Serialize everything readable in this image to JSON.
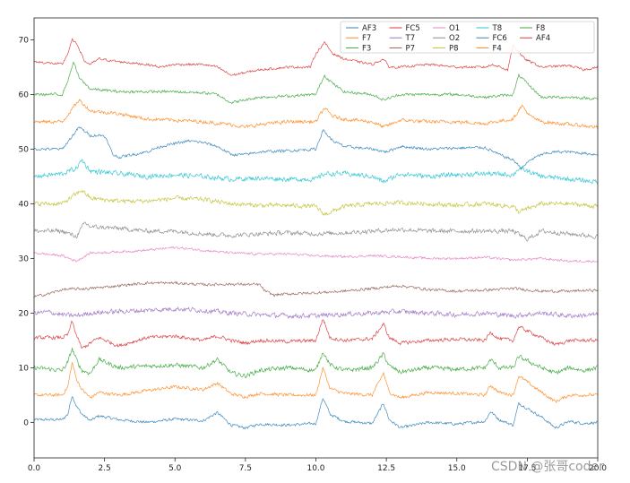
{
  "chart_data": {
    "type": "line",
    "title": "",
    "xlabel": "",
    "ylabel": "",
    "xlim": [
      0,
      20
    ],
    "ylim": [
      -6.5,
      74
    ],
    "xticks": [
      0,
      2.5,
      5,
      7.5,
      10,
      12.5,
      15,
      17.5,
      20
    ],
    "xtick_labels": [
      "0.0",
      "2.5",
      "5.0",
      "7.5",
      "10.0",
      "12.5",
      "15.0",
      "17.5",
      "20.0"
    ],
    "yticks": [
      0,
      10,
      20,
      30,
      40,
      50,
      60,
      70
    ],
    "ytick_labels": [
      "0",
      "10",
      "20",
      "30",
      "40",
      "50",
      "60",
      "70"
    ],
    "grid": false,
    "legend_placement": "top-right",
    "series": [
      {
        "name": "AF3",
        "color": "#1f77b4",
        "offset": 0,
        "noise": 0.35,
        "x": [
          0,
          1.0,
          1.2,
          1.35,
          1.5,
          1.7,
          2.0,
          2.3,
          3,
          4,
          5,
          6,
          6.5,
          7,
          7.5,
          8,
          9,
          10,
          10.25,
          10.5,
          11,
          12,
          12.4,
          12.6,
          13,
          14,
          15,
          16,
          16.2,
          16.5,
          17,
          17.2,
          18,
          18.5,
          19,
          19.5,
          20
        ],
        "y": [
          0.5,
          0.5,
          1.5,
          5,
          3,
          1.5,
          0.3,
          1.2,
          0.5,
          0,
          0.6,
          0.3,
          1.8,
          -0.5,
          -1,
          -0.3,
          -0.5,
          -0.2,
          4.5,
          1.5,
          0.2,
          -0.2,
          3.5,
          0.5,
          -1,
          0,
          -0.3,
          0.2,
          2,
          0.5,
          -0.5,
          3.5,
          1,
          -1,
          0.2,
          -0.2,
          0
        ]
      },
      {
        "name": "F7",
        "color": "#ff7f0e",
        "offset": 5,
        "noise": 0.4,
        "x": [
          0,
          1.0,
          1.2,
          1.35,
          1.5,
          1.7,
          2.0,
          2.3,
          3,
          4,
          5,
          6,
          6.5,
          7,
          7.5,
          8,
          9,
          10,
          10.25,
          10.5,
          11,
          12,
          12.4,
          12.6,
          13,
          14,
          15,
          16,
          16.2,
          16.5,
          17,
          17.2,
          18,
          18.5,
          19,
          19.5,
          20
        ],
        "y": [
          0,
          0,
          1.5,
          6,
          3,
          1,
          -0.5,
          0.5,
          0,
          0.8,
          1.5,
          1,
          2.2,
          0.2,
          -0.3,
          0.3,
          0,
          0,
          5,
          1.2,
          0.3,
          0,
          4,
          0.5,
          -0.5,
          0.5,
          0.3,
          0,
          1.8,
          0.5,
          0,
          3.5,
          0.5,
          -1.2,
          0,
          0,
          0
        ]
      },
      {
        "name": "F3",
        "color": "#2ca02c",
        "offset": 10,
        "noise": 0.55,
        "x": [
          0,
          1.0,
          1.2,
          1.35,
          1.5,
          1.7,
          2.0,
          2.3,
          3,
          4,
          5,
          6,
          6.5,
          7,
          7.5,
          8,
          9,
          10,
          10.25,
          10.5,
          11,
          12,
          12.4,
          12.6,
          13,
          14,
          15,
          16,
          16.2,
          16.5,
          17,
          17.2,
          18,
          18.5,
          19,
          19.5,
          20
        ],
        "y": [
          0,
          -0.5,
          1,
          3.5,
          1.5,
          -0.5,
          -1,
          1.5,
          0,
          0.3,
          0.5,
          0,
          1.5,
          -1,
          -1.5,
          -0.5,
          0,
          -0.5,
          3,
          0.5,
          -0.5,
          0,
          2.5,
          0.3,
          -0.8,
          0,
          -0.3,
          0,
          1.5,
          0,
          0,
          2,
          0,
          -1,
          0,
          -0.5,
          0
        ]
      },
      {
        "name": "FC5",
        "color": "#d62728",
        "offset": 15,
        "noise": 0.45,
        "x": [
          0,
          1.0,
          1.2,
          1.35,
          1.5,
          1.7,
          2.0,
          2.3,
          3,
          4,
          5,
          6,
          6.5,
          7,
          7.5,
          8,
          9,
          10,
          10.25,
          10.5,
          11,
          12,
          12.4,
          12.6,
          13,
          14,
          15,
          16,
          16.2,
          16.5,
          17,
          17.2,
          18,
          18.5,
          19,
          19.5,
          20
        ],
        "y": [
          0.5,
          0.5,
          1,
          3.5,
          1,
          -1.5,
          -0.5,
          0.5,
          -1,
          0.5,
          0.8,
          0,
          0.8,
          0,
          -0.5,
          0,
          -0.2,
          0,
          4,
          0.5,
          0,
          0.3,
          3,
          0.5,
          -0.5,
          0,
          0.2,
          0,
          1.5,
          0.3,
          0,
          2.5,
          0.5,
          -0.8,
          0,
          0,
          0
        ]
      },
      {
        "name": "T7",
        "color": "#9467bd",
        "offset": 20,
        "noise": 0.6,
        "x": [
          0,
          0.5,
          1,
          1.5,
          2,
          3,
          4,
          5,
          6,
          7,
          8,
          9,
          10,
          11,
          12,
          13,
          14,
          15,
          16,
          17,
          18,
          19,
          20
        ],
        "y": [
          0,
          0.2,
          -0.3,
          -0.5,
          0,
          0.3,
          0.5,
          0.8,
          0.5,
          0,
          -0.3,
          -0.5,
          -0.5,
          -0.2,
          0,
          0.3,
          0,
          -0.3,
          0,
          -0.5,
          0,
          -0.5,
          -0.3
        ]
      },
      {
        "name": "P7",
        "color": "#8c564b",
        "offset": 24,
        "noise": 0.35,
        "x": [
          0,
          0.5,
          1,
          2,
          3,
          4,
          5,
          6,
          7,
          8,
          8.2,
          8.5,
          9,
          10,
          11,
          12,
          13,
          14,
          15,
          16,
          17,
          18,
          19,
          20
        ],
        "y": [
          -1,
          -0.5,
          0.3,
          0.5,
          1,
          1.5,
          1.5,
          1.2,
          1.3,
          1.2,
          0,
          -0.7,
          -0.5,
          -0.3,
          0,
          0.5,
          1,
          0.3,
          0,
          0.2,
          0.5,
          0,
          0,
          0.2
        ]
      },
      {
        "name": "O1",
        "color": "#e377c2",
        "offset": 30,
        "noise": 0.3,
        "x": [
          0,
          1,
          1.5,
          2,
          3,
          4,
          5,
          6,
          7,
          8,
          9,
          10,
          11,
          12,
          13,
          14,
          15,
          16,
          17,
          18,
          19,
          20
        ],
        "y": [
          1,
          0.5,
          -0.5,
          1,
          1.2,
          1.5,
          2,
          1.5,
          1,
          0.8,
          0.8,
          0.5,
          0.3,
          0.5,
          0.3,
          0,
          0,
          0.2,
          -0.3,
          0,
          -0.5,
          -0.5
        ]
      },
      {
        "name": "O2",
        "color": "#7f7f7f",
        "offset": 35,
        "noise": 0.55,
        "x": [
          0,
          1,
          1.5,
          1.8,
          2,
          3,
          4,
          5,
          6,
          7,
          8,
          9,
          10,
          11,
          12,
          13,
          14,
          15,
          16,
          17,
          17.5,
          18,
          19,
          20
        ],
        "y": [
          0,
          0,
          -1,
          1.5,
          0.8,
          0.5,
          0,
          0,
          -0.5,
          -0.8,
          -0.5,
          -0.3,
          -0.5,
          -0.3,
          0,
          0.3,
          0,
          0,
          0,
          0,
          -1.5,
          0,
          -0.5,
          -1
        ]
      },
      {
        "name": "P8",
        "color": "#bcbd22",
        "offset": 40,
        "noise": 0.55,
        "x": [
          0,
          1,
          1.7,
          2,
          3,
          4,
          5,
          6,
          7,
          8,
          9,
          10,
          10.3,
          11,
          12,
          13,
          14,
          15,
          16,
          17,
          17.2,
          18,
          19,
          20
        ],
        "y": [
          0,
          0,
          2.5,
          1,
          0.5,
          0.5,
          1,
          0.8,
          0,
          -0.3,
          -0.3,
          -0.5,
          -2,
          -0.5,
          0,
          0.2,
          0,
          -0.3,
          0,
          -0.5,
          -1.5,
          0,
          0,
          -0.5
        ]
      },
      {
        "name": "T8",
        "color": "#17becf",
        "offset": 45,
        "noise": 0.6,
        "x": [
          0,
          1,
          1.5,
          1.7,
          2,
          3,
          4,
          5,
          6,
          7,
          8,
          9,
          10,
          10.3,
          11,
          12,
          12.4,
          13,
          14,
          15,
          16,
          17,
          17.2,
          18,
          19,
          20
        ],
        "y": [
          0,
          0.5,
          1.5,
          3,
          1,
          0.5,
          0,
          0.3,
          0,
          -0.5,
          -0.3,
          -0.5,
          -0.5,
          0.5,
          0.5,
          0,
          -1,
          0.5,
          0,
          0.3,
          0.5,
          0.3,
          1.5,
          0,
          -0.5,
          -1
        ]
      },
      {
        "name": "FC6",
        "color": "#1f77b4",
        "offset": 50,
        "noise": 0.35,
        "x": [
          0,
          1,
          1.3,
          1.6,
          2,
          2.5,
          2.8,
          3,
          3.5,
          4,
          4.5,
          5,
          5.5,
          6,
          6.5,
          7,
          7.5,
          8,
          9,
          10,
          10.25,
          10.6,
          11,
          12,
          12.5,
          13,
          14,
          15,
          16,
          16.5,
          17,
          17.3,
          17.6,
          18,
          18.5,
          19,
          20
        ],
        "y": [
          0,
          0,
          2,
          4,
          2.5,
          2.5,
          -1,
          -1.5,
          -1,
          -0.5,
          0.5,
          1,
          1.5,
          1.2,
          0.5,
          -1,
          -1,
          -0.5,
          -0.3,
          0,
          3.5,
          1.5,
          0.5,
          0,
          -0.5,
          0.5,
          0,
          0.2,
          0.3,
          -1,
          -2,
          -3.5,
          -2,
          -1,
          -0.5,
          -0.5,
          -1
        ]
      },
      {
        "name": "F4",
        "color": "#ff7f0e",
        "offset": 55,
        "noise": 0.45,
        "x": [
          0,
          1,
          1.3,
          1.6,
          2,
          3,
          4,
          5,
          6,
          7,
          7.5,
          8,
          9,
          10,
          10.3,
          10.6,
          11,
          12,
          12.4,
          13,
          14,
          15,
          16,
          17,
          17.3,
          17.6,
          18,
          19,
          20
        ],
        "y": [
          0,
          0,
          2,
          4,
          2,
          1.5,
          0.5,
          0.3,
          0,
          -0.5,
          -1,
          -0.5,
          0,
          0,
          2.5,
          1,
          0.5,
          0,
          -1,
          0.3,
          0,
          0,
          -0.3,
          0.5,
          3,
          1,
          0,
          -0.5,
          -1
        ]
      },
      {
        "name": "F8",
        "color": "#2ca02c",
        "offset": 60,
        "noise": 0.35,
        "x": [
          0,
          1,
          1.2,
          1.4,
          1.6,
          2,
          3,
          4,
          5,
          6,
          6.5,
          7,
          8,
          9,
          10,
          10.3,
          10.6,
          11,
          12,
          12.4,
          13,
          14,
          15,
          16,
          17,
          17.2,
          17.6,
          18,
          19,
          20
        ],
        "y": [
          0,
          0,
          2.5,
          6,
          3,
          1,
          0.5,
          0.5,
          0.5,
          0.3,
          0,
          -1.5,
          -0.5,
          -0.3,
          0,
          3.5,
          2,
          0.5,
          0,
          -1,
          0,
          0,
          0,
          -0.5,
          0,
          3.5,
          1.5,
          -0.5,
          -0.5,
          -0.8
        ]
      },
      {
        "name": "AF4",
        "color": "#d62728",
        "offset": 65,
        "noise": 0.3,
        "x": [
          0,
          1,
          1.2,
          1.35,
          1.55,
          1.8,
          2,
          2.3,
          3,
          4,
          4.5,
          5,
          6,
          6.5,
          7,
          7.5,
          8,
          9,
          9.8,
          10.0,
          10.3,
          10.6,
          11,
          12,
          12.4,
          12.6,
          13,
          14,
          15,
          16,
          16.3,
          16.8,
          17,
          17.4,
          17.8,
          18,
          19,
          19.5,
          20
        ],
        "y": [
          1,
          0.5,
          2.5,
          5,
          4,
          1,
          0.5,
          1.5,
          1,
          0.5,
          0,
          0.5,
          0.5,
          0,
          -1.5,
          -1,
          -0.5,
          0,
          0,
          2.5,
          4.5,
          2.5,
          1.5,
          0.5,
          1.5,
          0,
          0,
          0.5,
          0,
          0,
          0.5,
          -0.5,
          4,
          1.5,
          0.5,
          0,
          0.3,
          -0.5,
          0
        ]
      }
    ]
  },
  "watermark": "CSDN @张哥coder"
}
